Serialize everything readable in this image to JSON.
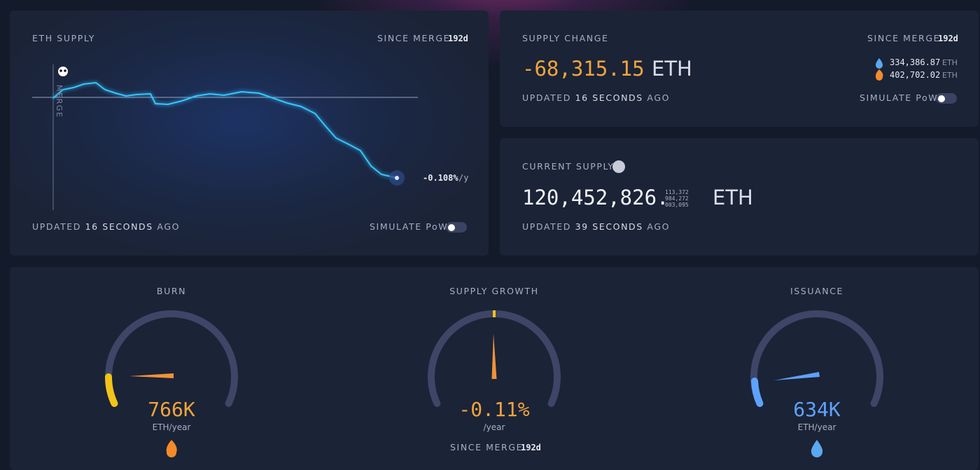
{
  "eth_supply": {
    "title": "ETH SUPPLY",
    "since_label": "SINCE MERGE",
    "since_value": "192d",
    "merge_label": "MERGE",
    "rate": "-0.108%",
    "rate_unit": "/y",
    "updated_prefix": "UPDATED",
    "updated_time": "16 SECONDS",
    "updated_suffix": "AGO",
    "toggle_label": "SIMULATE PoW"
  },
  "supply_change": {
    "title": "SUPPLY CHANGE",
    "since_label": "SINCE MERGE",
    "since_value": "192d",
    "value": "-68,315.15",
    "unit": "ETH",
    "issued": "334,386.87",
    "issued_unit": "ETH",
    "burned": "402,702.02",
    "burned_unit": "ETH",
    "updated_prefix": "UPDATED",
    "updated_time": "16 SECONDS",
    "updated_suffix": "AGO",
    "toggle_label": "SIMULATE PoW"
  },
  "current_supply": {
    "title": "CURRENT SUPPLY",
    "value": "120,452,826.",
    "decimals": [
      "113,372",
      "984,272",
      "003,095"
    ],
    "unit": "ETH",
    "updated_prefix": "UPDATED",
    "updated_time": "39 SECONDS",
    "updated_suffix": "AGO"
  },
  "gauges": [
    {
      "title": "BURN",
      "value": "766K",
      "unit": "ETH/year"
    },
    {
      "title": "SUPPLY GROWTH",
      "value": "-0.11%",
      "unit": "/year",
      "since_label": "SINCE MERGE",
      "since_value": "192d"
    },
    {
      "title": "ISSUANCE",
      "value": "634K",
      "unit": "ETH/year"
    }
  ]
}
